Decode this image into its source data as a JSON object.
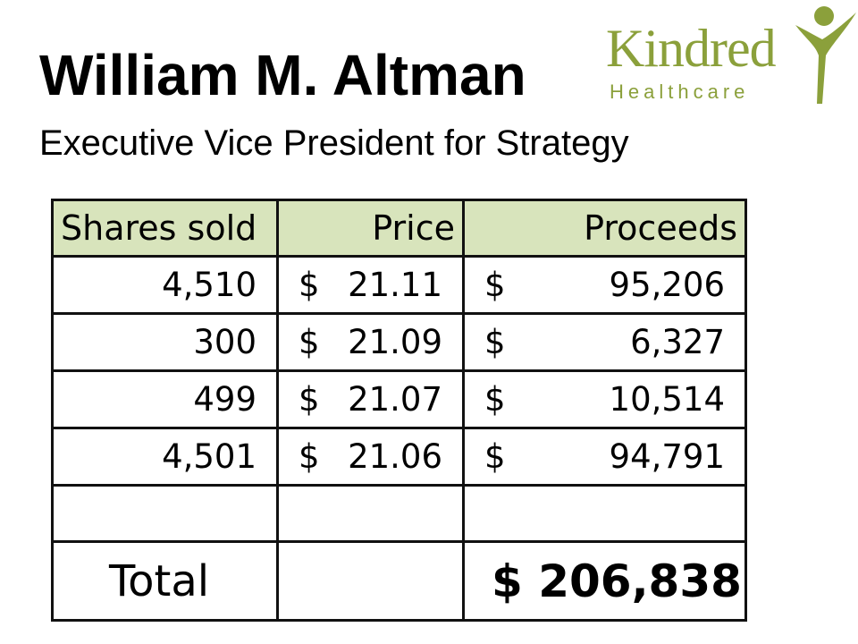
{
  "header": {
    "name": "William M. Altman",
    "title": "Executive Vice President for Strategy"
  },
  "logo": {
    "wordmark": "Kindred",
    "tagline": "Healthcare",
    "color": "#8ba03b"
  },
  "table": {
    "columns": [
      "Shares sold",
      "Price",
      "Proceeds"
    ],
    "header_color": "#d8e4bc",
    "rows": [
      {
        "shares": "4,510",
        "price_symbol": "$",
        "price": "21.11",
        "proceeds_symbol": "$",
        "proceeds": "95,206"
      },
      {
        "shares": "300",
        "price_symbol": "$",
        "price": "21.09",
        "proceeds_symbol": "$",
        "proceeds": "6,327"
      },
      {
        "shares": "499",
        "price_symbol": "$",
        "price": "21.07",
        "proceeds_symbol": "$",
        "proceeds": "10,514"
      },
      {
        "shares": "4,501",
        "price_symbol": "$",
        "price": "21.06",
        "proceeds_symbol": "$",
        "proceeds": "94,791"
      }
    ],
    "total_label": "Total",
    "total_value": "$ 206,838"
  }
}
